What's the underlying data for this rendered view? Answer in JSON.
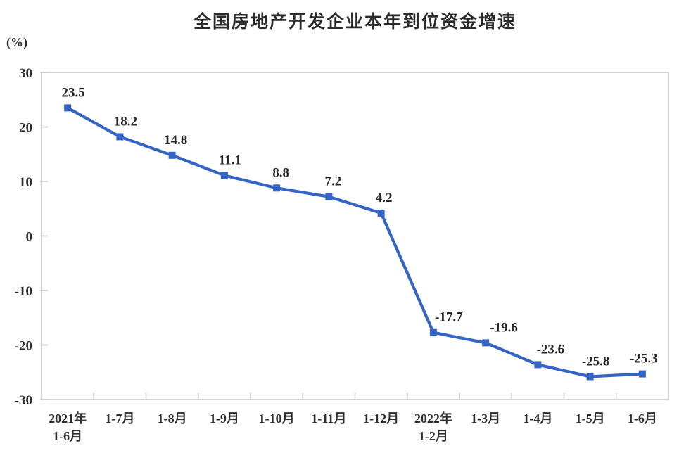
{
  "chart_data": {
    "type": "line",
    "title": "全国房地产开发企业本年到位资金增速",
    "unit_label": "(%)",
    "categories": [
      "2021年\n1-6月",
      "1-7月",
      "1-8月",
      "1-9月",
      "1-10月",
      "1-11月",
      "1-12月",
      "2022年\n1-2月",
      "1-3月",
      "1-4月",
      "1-5月",
      "1-6月"
    ],
    "values": [
      23.5,
      18.2,
      14.8,
      11.1,
      8.8,
      7.2,
      4.2,
      -17.7,
      -19.6,
      -23.6,
      -25.8,
      -25.3
    ],
    "yticks": [
      30,
      20,
      10,
      0,
      -10,
      -20,
      -30
    ],
    "ylim": [
      -30,
      30
    ],
    "grid": false,
    "legend": "none",
    "marker": "square",
    "colors": {
      "series": "#3464c4",
      "axis": "#c8c8c8",
      "text": "#2e2e2e"
    },
    "label_dx": [
      8,
      8,
      5,
      8,
      6,
      6,
      4,
      22,
      26,
      18,
      8,
      2
    ]
  }
}
